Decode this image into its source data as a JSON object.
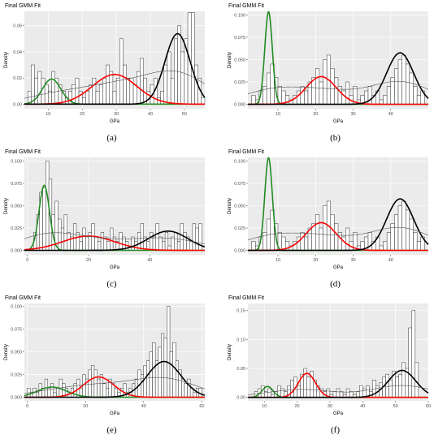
{
  "colors": {
    "panel_bg": "#ebebeb",
    "grid_major": "#ffffff",
    "bar_fill": "#ffffff",
    "bar_stroke": "#000000",
    "mixture_line": "#555555",
    "component_1": "#228b22",
    "component_2": "#ff0000",
    "component_3": "#000000"
  },
  "chart_data": [
    {
      "label": "(a)",
      "type": "bar",
      "title": "Final GMM Fit",
      "xlabel": "GPa",
      "ylabel": "Density",
      "xlim": [
        3,
        56
      ],
      "ylim": [
        -0.0035,
        0.071
      ],
      "xticks": [
        10,
        20,
        30,
        40,
        50
      ],
      "yticks": [
        0.0,
        0.02,
        0.04,
        0.06
      ],
      "ytick_labels": [
        "0.00",
        "0.02",
        "0.04",
        "0.06"
      ],
      "bins": {
        "start": 4,
        "width": 1,
        "values": [
          0.01,
          0.03,
          0.02,
          0.025,
          0.02,
          0.015,
          0.01,
          0.025,
          0.02,
          0.015,
          0.01,
          0.005,
          0.01,
          0.015,
          0.02,
          0.01,
          0.005,
          0.01,
          0.015,
          0.02,
          0.01,
          0.015,
          0.02,
          0.03,
          0.025,
          0.01,
          0.02,
          0.05,
          0.03,
          0.02,
          0.02,
          0.015,
          0.025,
          0.035,
          0.02,
          0.01,
          0.015,
          0.02,
          0.005,
          0.01,
          0.03,
          0.04,
          0.02,
          0.05,
          0.06,
          0.04,
          0.05,
          0.07,
          0.07,
          0.03,
          0.02,
          0.005
        ]
      },
      "components": [
        {
          "mean": 11,
          "sd": 2.7,
          "weight": 0.13
        },
        {
          "mean": 29.5,
          "sd": 6.5,
          "weight": 0.37
        },
        {
          "mean": 48,
          "sd": 3.7,
          "weight": 0.5
        }
      ]
    },
    {
      "label": "(b)",
      "type": "bar",
      "title": "Final GMM Fit",
      "xlabel": "GPa",
      "ylabel": "Density",
      "xlim": [
        2,
        50
      ],
      "ylim": [
        -0.005,
        0.104
      ],
      "xticks": [
        10,
        20,
        30,
        40
      ],
      "yticks": [
        0.0,
        0.025,
        0.05,
        0.075,
        0.1
      ],
      "ytick_labels": [
        "0.000",
        "0.025",
        "0.050",
        "0.075",
        "0.100"
      ],
      "bins": {
        "start": 3,
        "width": 1,
        "values": [
          0.01,
          0.005,
          0.015,
          0.02,
          0.035,
          0.045,
          0.03,
          0.02,
          0.015,
          0.01,
          0.005,
          0.01,
          0.015,
          0.02,
          0.015,
          0.025,
          0.03,
          0.04,
          0.025,
          0.05,
          0.055,
          0.04,
          0.03,
          0.02,
          0.015,
          0.025,
          0.01,
          0.02,
          0.005,
          0.01,
          0.015,
          0.02,
          0.01,
          0.015,
          0.005,
          0.01,
          0.02,
          0.03,
          0.04,
          0.05,
          0.055,
          0.045,
          0.035,
          0.02,
          0.01,
          0.015
        ]
      },
      "components": [
        {
          "mean": 7.5,
          "sd": 1.0,
          "weight": 0.26
        },
        {
          "mean": 21.5,
          "sd": 4.0,
          "weight": 0.31
        },
        {
          "mean": 42.5,
          "sd": 3.6,
          "weight": 0.52
        }
      ]
    },
    {
      "label": "(c)",
      "type": "bar",
      "title": "Final GMM Fit",
      "xlabel": "GPa",
      "ylabel": "Density",
      "xlim": [
        -1,
        58
      ],
      "ylim": [
        -0.005,
        0.104
      ],
      "xticks": [
        0,
        20,
        40
      ],
      "yticks": [
        0.0,
        0.025,
        0.05,
        0.075,
        0.1
      ],
      "ytick_labels": [
        "0.000",
        "0.025",
        "0.050",
        "0.075",
        "0.100"
      ],
      "bins": {
        "start": 2,
        "width": 1,
        "values": [
          0.02,
          0.04,
          0.065,
          0.07,
          0.1,
          0.08,
          0.04,
          0.055,
          0.035,
          0.025,
          0.04,
          0.02,
          0.015,
          0.03,
          0.02,
          0.01,
          0.025,
          0.015,
          0.02,
          0.03,
          0.015,
          0.01,
          0.02,
          0.015,
          0.01,
          0.025,
          0.015,
          0.01,
          0.02,
          0.015,
          0.01,
          0.005,
          0.015,
          0.01,
          0.02,
          0.03,
          0.015,
          0.01,
          0.02,
          0.015,
          0.03,
          0.015,
          0.01,
          0.02,
          0.005,
          0.015,
          0.02,
          0.01,
          0.03,
          0.02,
          0.015,
          0.01,
          0.03,
          0.025,
          0.03
        ]
      },
      "components": [
        {
          "mean": 5.5,
          "sd": 1.7,
          "weight": 0.31
        },
        {
          "mean": 20,
          "sd": 8.5,
          "weight": 0.34
        },
        {
          "mean": 46,
          "sd": 6.5,
          "weight": 0.35
        }
      ]
    },
    {
      "label": "(d)",
      "type": "bar",
      "title": "Final GMM Fit",
      "xlabel": "GPa",
      "ylabel": "Density",
      "xlim": [
        2,
        50
      ],
      "ylim": [
        -0.005,
        0.104
      ],
      "xticks": [
        10,
        20,
        30,
        40
      ],
      "yticks": [
        0.0,
        0.025,
        0.05,
        0.075,
        0.1
      ],
      "ytick_labels": [
        "0.000",
        "0.025",
        "0.050",
        "0.075",
        "0.100"
      ],
      "bins": {
        "start": 3,
        "width": 1,
        "values": [
          0.01,
          0.005,
          0.015,
          0.02,
          0.035,
          0.045,
          0.03,
          0.02,
          0.015,
          0.01,
          0.005,
          0.01,
          0.015,
          0.02,
          0.015,
          0.025,
          0.03,
          0.04,
          0.025,
          0.05,
          0.055,
          0.04,
          0.03,
          0.02,
          0.015,
          0.025,
          0.01,
          0.02,
          0.005,
          0.01,
          0.015,
          0.02,
          0.01,
          0.015,
          0.005,
          0.01,
          0.02,
          0.03,
          0.04,
          0.05,
          0.055,
          0.045,
          0.035,
          0.02,
          0.01,
          0.015
        ]
      },
      "components": [
        {
          "mean": 7.5,
          "sd": 1.0,
          "weight": 0.26
        },
        {
          "mean": 21.5,
          "sd": 4.0,
          "weight": 0.31
        },
        {
          "mean": 42.5,
          "sd": 3.6,
          "weight": 0.52
        }
      ]
    },
    {
      "label": "(e)",
      "type": "bar",
      "title": "Final GMM Fit",
      "xlabel": "GPa",
      "ylabel": "Density",
      "xlim": [
        -1,
        61
      ],
      "ylim": [
        -0.004,
        0.103
      ],
      "xticks": [
        0,
        20,
        40,
        60
      ],
      "yticks": [
        0.0,
        0.025,
        0.05,
        0.075,
        0.1
      ],
      "ytick_labels": [
        "0.000",
        "0.025",
        "0.050",
        "0.075",
        "0.100"
      ],
      "bins": {
        "start": 0,
        "width": 1,
        "values": [
          0.01,
          0.005,
          0.01,
          0.005,
          0.015,
          0.01,
          0.02,
          0.01,
          0.015,
          0.005,
          0.01,
          0.02,
          0.015,
          0.01,
          0.005,
          0.01,
          0.015,
          0.02,
          0.01,
          0.025,
          0.02,
          0.03,
          0.035,
          0.03,
          0.02,
          0.025,
          0.015,
          0.01,
          0.02,
          0.015,
          0.01,
          0.005,
          0.01,
          0.015,
          0.005,
          0.01,
          0.015,
          0.02,
          0.03,
          0.025,
          0.035,
          0.04,
          0.05,
          0.06,
          0.04,
          0.055,
          0.07,
          0.065,
          0.1,
          0.05,
          0.06,
          0.04,
          0.03,
          0.02,
          0.015,
          0.02,
          0.01,
          0.005,
          0.01,
          0.01
        ]
      },
      "components": [
        {
          "mean": 8.5,
          "sd": 5.0,
          "weight": 0.14
        },
        {
          "mean": 24.5,
          "sd": 5.2,
          "weight": 0.29
        },
        {
          "mean": 47,
          "sd": 5.8,
          "weight": 0.57
        }
      ]
    },
    {
      "label": "(f)",
      "type": "bar",
      "title": "Final GMM Fit",
      "xlabel": "GPa",
      "ylabel": "Density",
      "xlim": [
        5,
        60
      ],
      "ylim": [
        -0.006,
        0.162
      ],
      "xticks": [
        10,
        20,
        30,
        40,
        50,
        60
      ],
      "yticks": [
        0.0,
        0.05,
        0.1,
        0.15
      ],
      "ytick_labels": [
        "0.00",
        "0.05",
        "0.10",
        "0.15"
      ],
      "bins": {
        "start": 7,
        "width": 1,
        "values": [
          0.01,
          0.015,
          0.02,
          0.01,
          0.015,
          0.005,
          0.01,
          0.02,
          0.015,
          0.01,
          0.02,
          0.03,
          0.035,
          0.02,
          0.04,
          0.05,
          0.035,
          0.045,
          0.03,
          0.02,
          0.015,
          0.01,
          0.015,
          0.005,
          0.01,
          0.015,
          0.01,
          0.005,
          0.015,
          0.01,
          0.005,
          0.01,
          0.02,
          0.015,
          0.02,
          0.01,
          0.03,
          0.02,
          0.025,
          0.035,
          0.04,
          0.03,
          0.045,
          0.035,
          0.04,
          0.06,
          0.05,
          0.12,
          0.15,
          0.06
        ]
      },
      "components": [
        {
          "mean": 11,
          "sd": 1.7,
          "weight": 0.08
        },
        {
          "mean": 23,
          "sd": 2.6,
          "weight": 0.27
        },
        {
          "mean": 52,
          "sd": 4.2,
          "weight": 0.49
        }
      ]
    }
  ]
}
